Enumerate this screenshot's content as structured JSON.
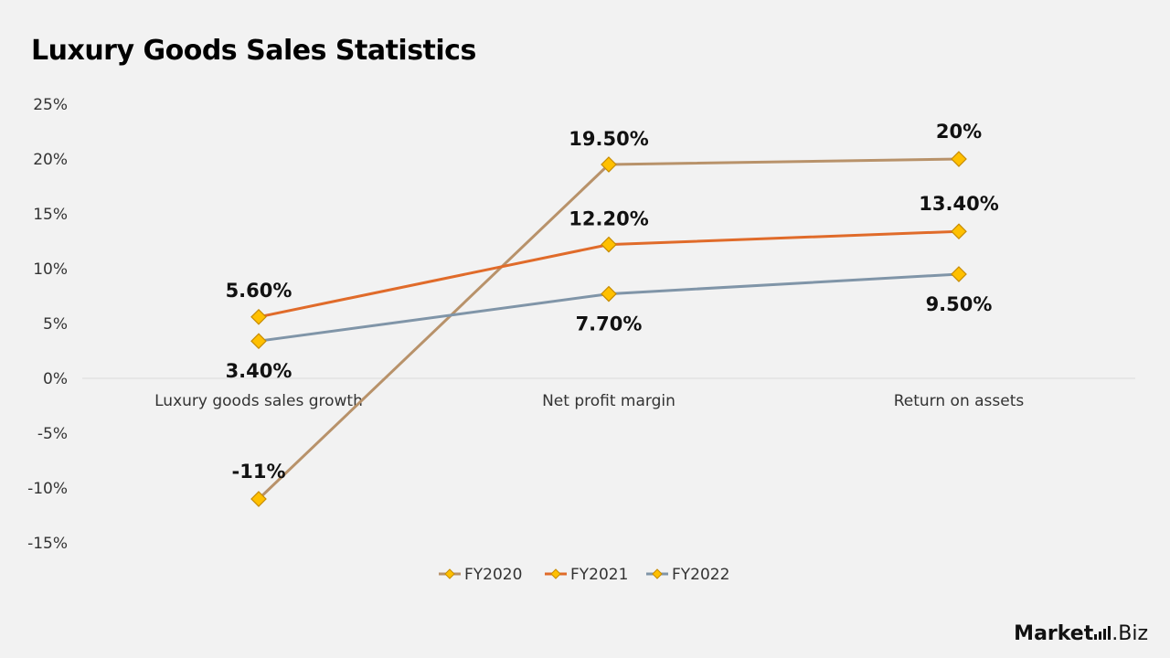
{
  "title": "Luxury Goods Sales Statistics",
  "brand": {
    "name_part1": "Market",
    "name_part2": ".Biz"
  },
  "colors": {
    "FY2020": "#b8926a",
    "FY2021": "#e06b2a",
    "FY2022": "#8095a8",
    "marker_fill": "#ffc000",
    "marker_stroke": "#c68b00",
    "gridline": "#d9d9d9"
  },
  "chart_data": {
    "type": "line",
    "categories": [
      "Luxury goods sales growth",
      "Net profit margin",
      "Return on assets"
    ],
    "ylim": [
      -15,
      25
    ],
    "yticks": [
      25,
      20,
      15,
      10,
      5,
      0,
      -5,
      -10,
      -15
    ],
    "ytick_labels": [
      "25%",
      "20%",
      "15%",
      "10%",
      "5%",
      "0%",
      "-5%",
      "-10%",
      "-15%"
    ],
    "series": [
      {
        "name": "FY2020",
        "values": [
          -11,
          19.5,
          20
        ],
        "labels": [
          "-11%",
          "19.50%",
          "20%"
        ]
      },
      {
        "name": "FY2021",
        "values": [
          5.6,
          12.2,
          13.4
        ],
        "labels": [
          "5.60%",
          "12.20%",
          "13.40%"
        ]
      },
      {
        "name": "FY2022",
        "values": [
          3.4,
          7.7,
          9.5
        ],
        "labels": [
          "3.40%",
          "7.70%",
          "9.50%"
        ]
      }
    ],
    "legend_position": "bottom",
    "grid": false,
    "marker": "diamond"
  }
}
